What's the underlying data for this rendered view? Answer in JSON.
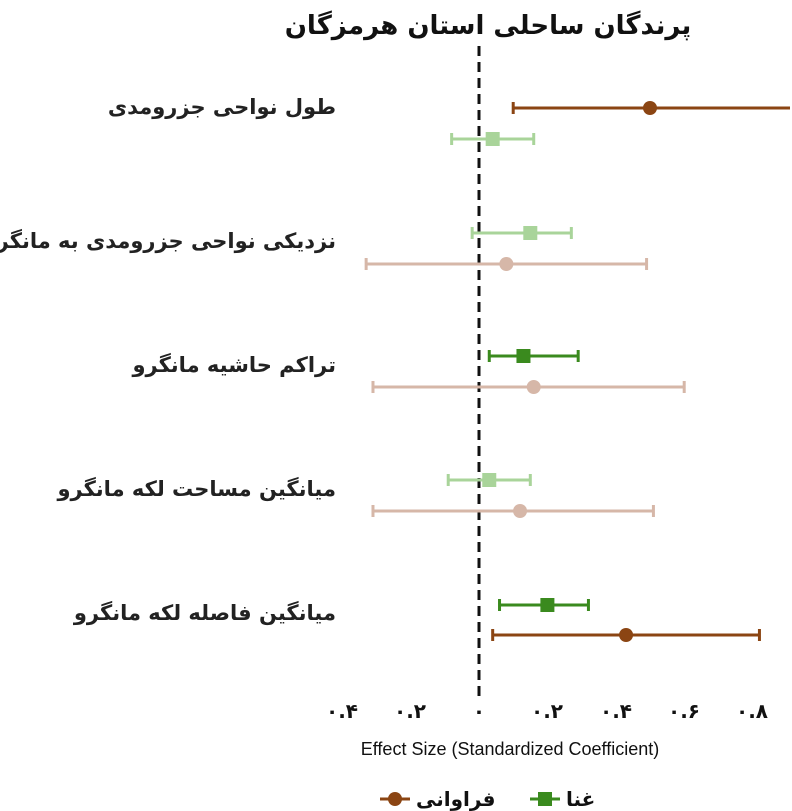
{
  "chart_data": {
    "type": "forest",
    "title": "پرندگان ساحلی استان هرمزگان",
    "xlabel": "Effect Size (Standardized Coefficient)",
    "xlim": [
      -0.45,
      0.92
    ],
    "xticks": [
      {
        "value": -0.4,
        "label": "۰.۴"
      },
      {
        "value": -0.2,
        "label": "۰.۲"
      },
      {
        "value": 0,
        "label": "۰"
      },
      {
        "value": 0.2,
        "label": "۰.۲"
      },
      {
        "value": 0.4,
        "label": "۰.۴"
      },
      {
        "value": 0.6,
        "label": "۰.۶"
      },
      {
        "value": 0.8,
        "label": "۰.۸"
      }
    ],
    "reference_line": 0,
    "categories": [
      "طول نواحی جزرومدی",
      "نزدیکی نواحی جزرومدی به مانگرو",
      "تراکم حاشیه مانگرو",
      "میانگین مساحت لکه مانگرو",
      "میانگین فاصله لکه مانگرو"
    ],
    "series": [
      {
        "name": "غنا",
        "color": "#3a8a1e",
        "marker": "square",
        "estimates": [
          0.04,
          0.15,
          0.13,
          0.03,
          0.2
        ],
        "lower": [
          -0.08,
          -0.02,
          0.03,
          -0.09,
          0.06
        ],
        "upper": [
          0.16,
          0.27,
          0.29,
          0.15,
          0.32
        ],
        "significant": [
          false,
          false,
          true,
          false,
          true
        ]
      },
      {
        "name": "فراوانی",
        "color": "#8b4513",
        "marker": "circle",
        "estimates": [
          null,
          0.08,
          0.16,
          0.12,
          0.43
        ],
        "lower": [
          0.1,
          -0.33,
          -0.31,
          -0.31,
          0.04
        ],
        "upper": [
          0.92,
          0.49,
          0.6,
          0.51,
          0.82
        ],
        "significant": [
          true,
          false,
          false,
          false,
          true
        ]
      }
    ],
    "legend": "bottom"
  }
}
